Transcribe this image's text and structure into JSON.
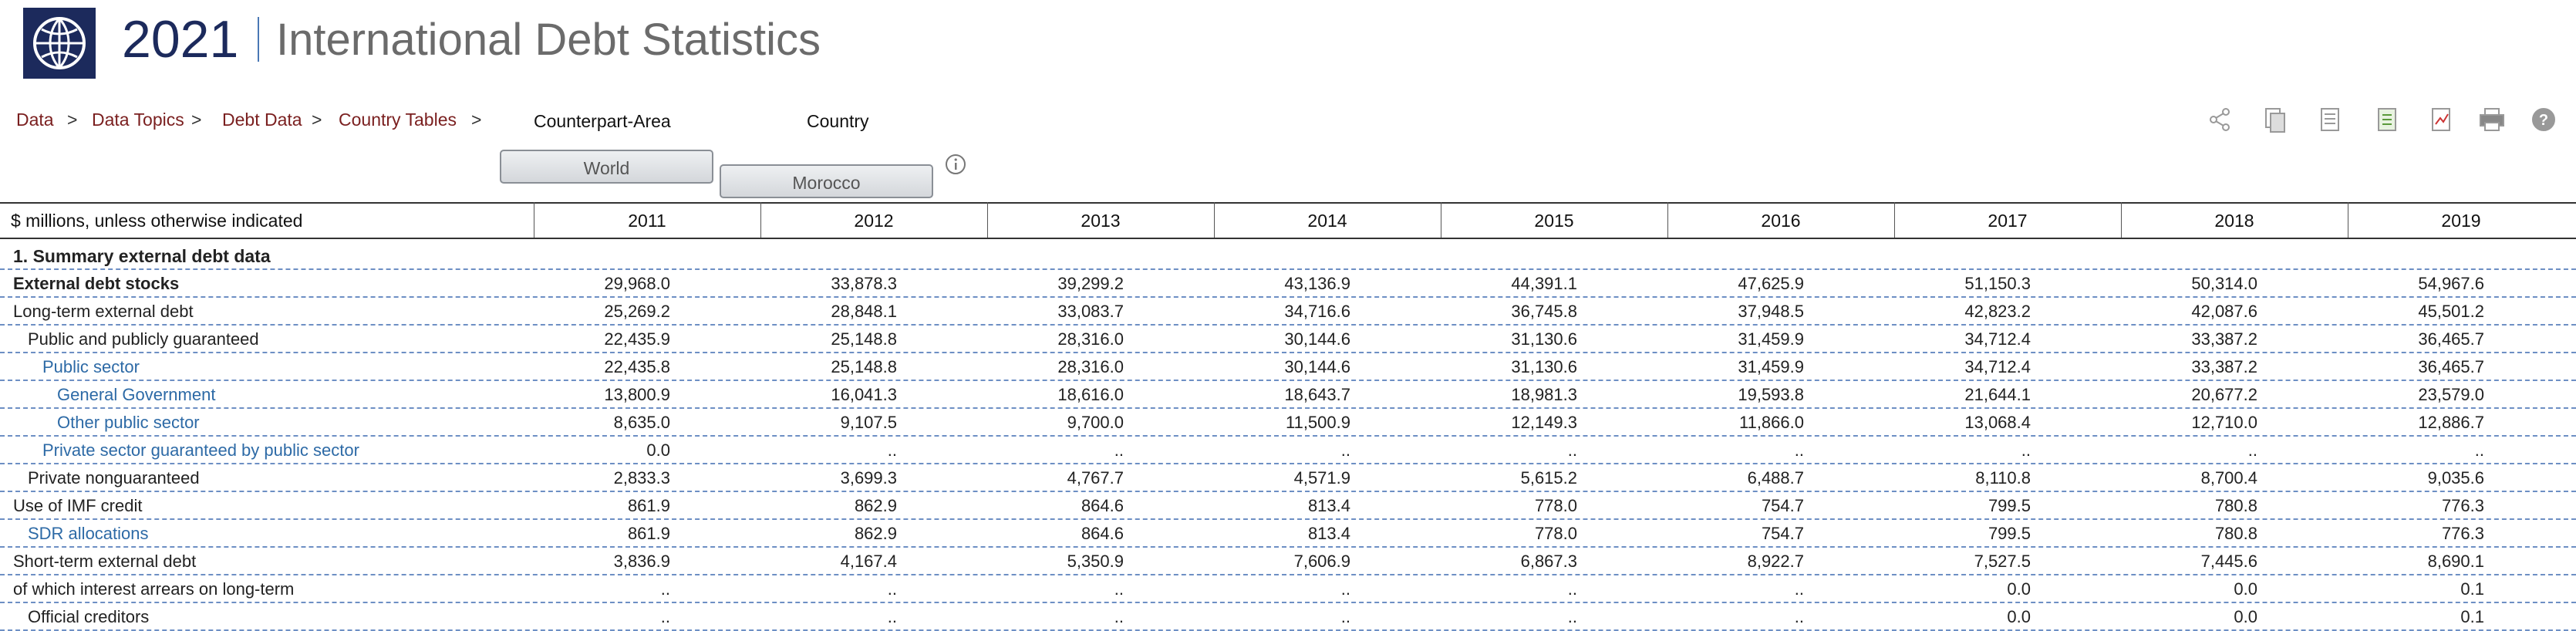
{
  "header": {
    "year": "2021",
    "title": "International Debt Statistics"
  },
  "breadcrumb": [
    "Data",
    "Data Topics",
    "Debt Data",
    "Country Tables"
  ],
  "breadcrumb_separator": ">",
  "selectors": {
    "counterpart_label": "Counterpart-Area",
    "counterpart_value": "World",
    "country_label": "Country",
    "country_value": "Morocco"
  },
  "table": {
    "unit_note": "$ millions, unless otherwise indicated",
    "years": [
      "2011",
      "2012",
      "2013",
      "2014",
      "2015",
      "2016",
      "2017",
      "2018",
      "2019"
    ],
    "section": "1. Summary external debt data",
    "rows": [
      {
        "label": "External debt stocks",
        "values": [
          "29,968.0",
          "33,878.3",
          "39,299.2",
          "43,136.9",
          "44,391.1",
          "47,625.9",
          "51,150.3",
          "50,314.0",
          "54,967.6"
        ]
      },
      {
        "label": "Long-term external debt",
        "values": [
          "25,269.2",
          "28,848.1",
          "33,083.7",
          "34,716.6",
          "36,745.8",
          "37,948.5",
          "42,823.2",
          "42,087.6",
          "45,501.2"
        ]
      },
      {
        "label": "Public and publicly guaranteed",
        "values": [
          "22,435.9",
          "25,148.8",
          "28,316.0",
          "30,144.6",
          "31,130.6",
          "31,459.9",
          "34,712.4",
          "33,387.2",
          "36,465.7"
        ]
      },
      {
        "label": "Public sector",
        "values": [
          "22,435.8",
          "25,148.8",
          "28,316.0",
          "30,144.6",
          "31,130.6",
          "31,459.9",
          "34,712.4",
          "33,387.2",
          "36,465.7"
        ]
      },
      {
        "label": "General Government",
        "values": [
          "13,800.9",
          "16,041.3",
          "18,616.0",
          "18,643.7",
          "18,981.3",
          "19,593.8",
          "21,644.1",
          "20,677.2",
          "23,579.0"
        ]
      },
      {
        "label": "Other public sector",
        "values": [
          "8,635.0",
          "9,107.5",
          "9,700.0",
          "11,500.9",
          "12,149.3",
          "11,866.0",
          "13,068.4",
          "12,710.0",
          "12,886.7"
        ]
      },
      {
        "label": "Private sector guaranteed by public sector",
        "values": [
          "0.0",
          "..",
          "..",
          "..",
          "..",
          "..",
          "..",
          "..",
          ".."
        ]
      },
      {
        "label": "Private nonguaranteed",
        "values": [
          "2,833.3",
          "3,699.3",
          "4,767.7",
          "4,571.9",
          "5,615.2",
          "6,488.7",
          "8,110.8",
          "8,700.4",
          "9,035.6"
        ]
      },
      {
        "label": "Use of IMF credit",
        "values": [
          "861.9",
          "862.9",
          "864.6",
          "813.4",
          "778.0",
          "754.7",
          "799.5",
          "780.8",
          "776.3"
        ]
      },
      {
        "label": "SDR allocations",
        "values": [
          "861.9",
          "862.9",
          "864.6",
          "813.4",
          "778.0",
          "754.7",
          "799.5",
          "780.8",
          "776.3"
        ]
      },
      {
        "label": "Short-term external debt",
        "values": [
          "3,836.9",
          "4,167.4",
          "5,350.9",
          "7,606.9",
          "6,867.3",
          "8,922.7",
          "7,527.5",
          "7,445.6",
          "8,690.1"
        ]
      },
      {
        "label": "of which interest arrears on long-term",
        "values": [
          "..",
          "..",
          "..",
          "..",
          "..",
          "..",
          "0.0",
          "0.0",
          "0.1"
        ]
      },
      {
        "label": "Official creditors",
        "values": [
          "..",
          "..",
          "..",
          "..",
          "..",
          "..",
          "0.0",
          "0.0",
          "0.1"
        ]
      }
    ]
  }
}
